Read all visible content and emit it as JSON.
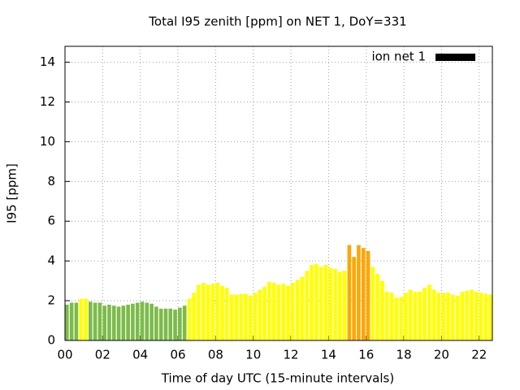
{
  "chart_data": {
    "type": "bar",
    "title": "Total I95 zenith [ppm] on NET 1, DoY=331",
    "x_label": "Time of day UTC (15-minute intervals)",
    "y_label": "I95 [ppm]",
    "x": [
      0,
      0.25,
      0.5,
      0.75,
      1,
      1.25,
      1.5,
      1.75,
      2,
      2.25,
      2.5,
      2.75,
      3,
      3.25,
      3.5,
      3.75,
      4,
      4.25,
      4.5,
      4.75,
      5,
      5.25,
      5.5,
      5.75,
      6,
      6.25,
      6.5,
      6.75,
      7,
      7.25,
      7.5,
      7.75,
      8,
      8.25,
      8.5,
      8.75,
      9,
      9.25,
      9.5,
      9.75,
      10,
      10.25,
      10.5,
      10.75,
      11,
      11.25,
      11.5,
      11.75,
      12,
      12.25,
      12.5,
      12.75,
      13,
      13.25,
      13.5,
      13.75,
      14,
      14.25,
      14.5,
      14.75,
      15,
      15.25,
      15.5,
      15.75,
      16,
      16.25,
      16.5,
      16.75,
      17,
      17.25,
      17.5,
      17.75,
      18,
      18.25,
      18.5,
      18.75,
      19,
      19.25,
      19.5,
      19.75,
      20,
      20.25,
      20.5,
      20.75,
      21,
      21.25,
      21.5,
      21.75,
      22,
      22.25,
      22.5
    ],
    "series": [
      {
        "name": "ion net 1",
        "color": "#000000",
        "values": [
          1.8,
          1.9,
          1.9,
          2.1,
          2.1,
          1.95,
          1.9,
          1.9,
          1.75,
          1.8,
          1.75,
          1.7,
          1.75,
          1.8,
          1.85,
          1.9,
          1.95,
          1.9,
          1.85,
          1.7,
          1.6,
          1.6,
          1.6,
          1.55,
          1.65,
          1.75,
          2.1,
          2.4,
          2.8,
          2.9,
          2.8,
          2.85,
          2.9,
          2.75,
          2.65,
          2.3,
          2.3,
          2.35,
          2.35,
          2.25,
          2.4,
          2.55,
          2.7,
          2.95,
          2.9,
          2.8,
          2.85,
          2.75,
          2.9,
          3.05,
          3.2,
          3.5,
          3.8,
          3.85,
          3.7,
          3.8,
          3.65,
          3.6,
          3.45,
          3.5,
          4.8,
          4.2,
          4.8,
          4.65,
          4.5,
          3.7,
          3.35,
          3.0,
          2.45,
          2.4,
          2.15,
          2.2,
          2.4,
          2.55,
          2.45,
          2.45,
          2.65,
          2.8,
          2.55,
          2.4,
          2.4,
          2.4,
          2.3,
          2.25,
          2.45,
          2.5,
          2.55,
          2.45,
          2.4,
          2.35,
          2.3
        ],
        "bar_colors": [
          "#7cbb4a",
          "#7cbb4a",
          "#7cbb4a",
          "#ffff00",
          "#ffff00",
          "#7cbb4a",
          "#7cbb4a",
          "#7cbb4a",
          "#7cbb4a",
          "#7cbb4a",
          "#7cbb4a",
          "#7cbb4a",
          "#7cbb4a",
          "#7cbb4a",
          "#7cbb4a",
          "#7cbb4a",
          "#7cbb4a",
          "#7cbb4a",
          "#7cbb4a",
          "#7cbb4a",
          "#7cbb4a",
          "#7cbb4a",
          "#7cbb4a",
          "#7cbb4a",
          "#7cbb4a",
          "#7cbb4a",
          "#ffff00",
          "#ffff00",
          "#ffff00",
          "#ffff00",
          "#ffff00",
          "#ffff00",
          "#ffff00",
          "#ffff00",
          "#ffff00",
          "#ffff00",
          "#ffff00",
          "#ffff00",
          "#ffff00",
          "#ffff00",
          "#ffff00",
          "#ffff00",
          "#ffff00",
          "#ffff00",
          "#ffff00",
          "#ffff00",
          "#ffff00",
          "#ffff00",
          "#ffff00",
          "#ffff00",
          "#ffff00",
          "#ffff00",
          "#ffff00",
          "#ffff00",
          "#ffff00",
          "#ffff00",
          "#ffff00",
          "#ffff00",
          "#ffff00",
          "#ffff00",
          "#ffa500",
          "#ffa500",
          "#ffa500",
          "#ffa500",
          "#ffa500",
          "#ffff00",
          "#ffff00",
          "#ffff00",
          "#ffff00",
          "#ffff00",
          "#ffff00",
          "#ffff00",
          "#ffff00",
          "#ffff00",
          "#ffff00",
          "#ffff00",
          "#ffff00",
          "#ffff00",
          "#ffff00",
          "#ffff00",
          "#ffff00",
          "#ffff00",
          "#ffff00",
          "#ffff00",
          "#ffff00",
          "#ffff00",
          "#ffff00",
          "#ffff00",
          "#ffff00",
          "#ffff00",
          "#ffff00"
        ]
      }
    ],
    "xlim": [
      0,
      22.7
    ],
    "xticks": [
      {
        "value": 0,
        "label": "00"
      },
      {
        "value": 2,
        "label": "02"
      },
      {
        "value": 4,
        "label": "04"
      },
      {
        "value": 6,
        "label": "06"
      },
      {
        "value": 8,
        "label": "08"
      },
      {
        "value": 10,
        "label": "10"
      },
      {
        "value": 12,
        "label": "12"
      },
      {
        "value": 14,
        "label": "14"
      },
      {
        "value": 16,
        "label": "16"
      },
      {
        "value": 18,
        "label": "18"
      },
      {
        "value": 20,
        "label": "20"
      },
      {
        "value": 22,
        "label": "22"
      }
    ],
    "ylim": [
      0,
      14.8
    ],
    "yticks": [
      0,
      2,
      4,
      6,
      8,
      10,
      12,
      14
    ],
    "grid": true,
    "legend": "top-right"
  }
}
